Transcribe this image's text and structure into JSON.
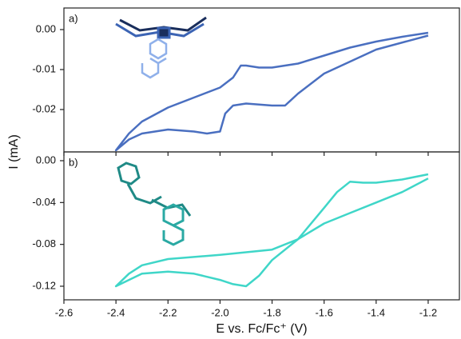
{
  "chart_data": [
    {
      "type": "line",
      "panel_label": "a)",
      "ylabel": "I (mA)",
      "xlim": [
        -2.6,
        -1.08
      ],
      "ylim": [
        -0.0306,
        0.0054
      ],
      "xticks": [
        -2.6,
        -2.4,
        -2.2,
        {
          "value": -2.0,
          "label": "-2.0"
        },
        -1.8,
        -1.6,
        -1.4,
        -1.2
      ],
      "yticks": [
        {
          "value": 0,
          "label": "0.00"
        },
        {
          "value": -0.01,
          "label": "-0.01"
        },
        {
          "value": -0.02,
          "label": "-0.02"
        }
      ],
      "series": [
        {
          "color": "#4a6fc0",
          "x": [
            -1.2,
            -1.4,
            -1.6,
            -1.7,
            -1.75,
            -1.8,
            -1.9,
            -1.95,
            -1.98,
            -2.0,
            -2.05,
            -2.1,
            -2.2,
            -2.3,
            -2.35,
            -2.4,
            -2.35,
            -2.3,
            -2.2,
            -2.1,
            -2.0,
            -1.95,
            -1.92,
            -1.9,
            -1.85,
            -1.8,
            -1.7,
            -1.6,
            -1.5,
            -1.4,
            -1.3,
            -1.2
          ],
          "values": [
            -0.0015,
            -0.005,
            -0.011,
            -0.016,
            -0.019,
            -0.019,
            -0.0185,
            -0.019,
            -0.021,
            -0.0255,
            -0.026,
            -0.0255,
            -0.025,
            -0.026,
            -0.0275,
            -0.0302,
            -0.026,
            -0.023,
            -0.0195,
            -0.017,
            -0.0145,
            -0.012,
            -0.009,
            -0.009,
            -0.0095,
            -0.0095,
            -0.0085,
            -0.0065,
            -0.0045,
            -0.003,
            -0.0018,
            -0.0008
          ]
        }
      ]
    },
    {
      "type": "line",
      "panel_label": "b)",
      "xlabel": "E vs. Fc/Fc⁺ (V)",
      "xlim": [
        -2.6,
        -1.08
      ],
      "ylim": [
        -0.133,
        0.0084
      ],
      "xticks": [
        -2.6,
        -2.4,
        -2.2,
        {
          "value": -2.0,
          "label": "-2.0"
        },
        -1.8,
        -1.6,
        -1.4,
        -1.2
      ],
      "yticks": [
        {
          "value": 0,
          "label": "0.00"
        },
        {
          "value": -0.04,
          "label": "-0.04"
        },
        {
          "value": -0.08,
          "label": "-0.08"
        },
        {
          "value": -0.12,
          "label": "-0.12"
        }
      ],
      "series": [
        {
          "color": "#3fd6c8",
          "x": [
            -1.2,
            -1.3,
            -1.4,
            -1.5,
            -1.6,
            -1.7,
            -1.8,
            -1.85,
            -1.9,
            -1.95,
            -2.0,
            -2.1,
            -2.2,
            -2.3,
            -2.4,
            -2.35,
            -2.3,
            -2.2,
            -2.0,
            -1.8,
            -1.7,
            -1.6,
            -1.55,
            -1.5,
            -1.45,
            -1.4,
            -1.3,
            -1.2
          ],
          "values": [
            -0.017,
            -0.03,
            -0.04,
            -0.05,
            -0.06,
            -0.075,
            -0.095,
            -0.11,
            -0.12,
            -0.118,
            -0.114,
            -0.108,
            -0.106,
            -0.108,
            -0.12,
            -0.108,
            -0.1,
            -0.094,
            -0.09,
            -0.085,
            -0.075,
            -0.045,
            -0.03,
            -0.02,
            -0.021,
            -0.021,
            -0.018,
            -0.013
          ]
        }
      ]
    }
  ]
}
